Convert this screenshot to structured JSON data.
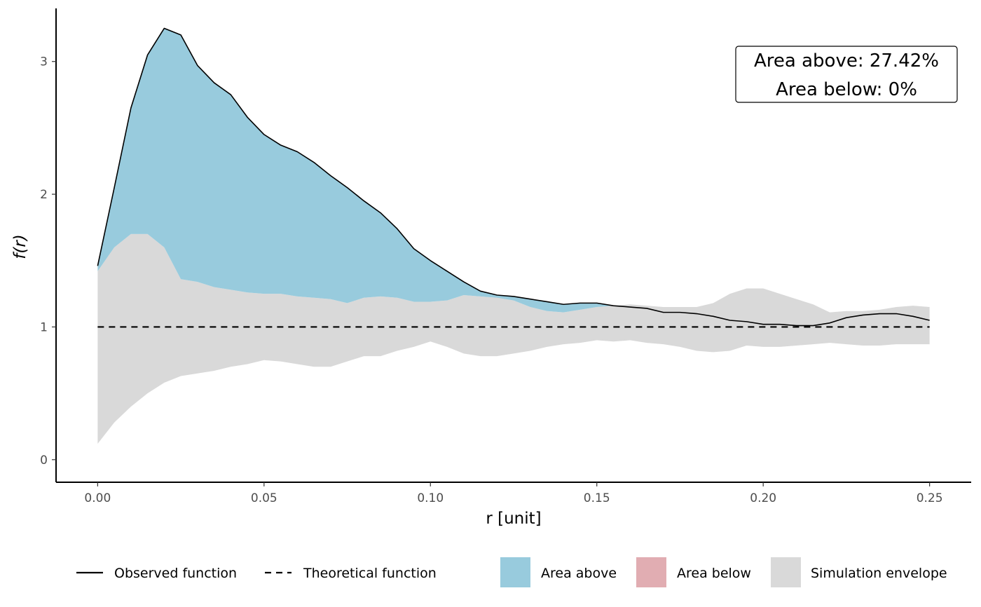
{
  "chart_data": {
    "type": "area",
    "xlabel": "r [unit]",
    "ylabel": "f(r)",
    "xlim": [
      -0.0125,
      0.2625
    ],
    "ylim": [
      -0.17,
      3.4
    ],
    "x_ticks": [
      0.0,
      0.05,
      0.1,
      0.15,
      0.2,
      0.25
    ],
    "x_tick_labels": [
      "0.00",
      "0.05",
      "0.10",
      "0.15",
      "0.20",
      "0.25"
    ],
    "y_ticks": [
      0,
      1,
      2,
      3
    ],
    "y_tick_labels": [
      "0",
      "1",
      "2",
      "3"
    ],
    "grid": false,
    "annotation": {
      "lines": [
        "Area above: 27.42%",
        "Area below: 0%"
      ],
      "placement": "top-right"
    },
    "colors": {
      "area_above": "#98cbdd",
      "area_below": "#e1adb2",
      "envelope": "#d9d9d9",
      "observed": "#000000",
      "theoretical": "#000000"
    },
    "legend": {
      "placement": "bottom",
      "line_items": [
        {
          "label": "Observed function",
          "style": "solid"
        },
        {
          "label": "Theoretical function",
          "style": "dashed"
        }
      ],
      "fill_items": [
        {
          "label": "Area above",
          "color": "#98cbdd"
        },
        {
          "label": "Area below",
          "color": "#e1adb2"
        },
        {
          "label": "Simulation envelope",
          "color": "#d9d9d9"
        }
      ]
    },
    "series": [
      {
        "name": "Observed function",
        "x": [
          0.0,
          0.005,
          0.01,
          0.015,
          0.02,
          0.025,
          0.03,
          0.035,
          0.04,
          0.045,
          0.05,
          0.055,
          0.06,
          0.065,
          0.07,
          0.075,
          0.08,
          0.085,
          0.09,
          0.095,
          0.1,
          0.105,
          0.11,
          0.115,
          0.12,
          0.125,
          0.13,
          0.135,
          0.14,
          0.145,
          0.15,
          0.155,
          0.16,
          0.165,
          0.17,
          0.175,
          0.18,
          0.185,
          0.19,
          0.195,
          0.2,
          0.205,
          0.21,
          0.215,
          0.22,
          0.225,
          0.23,
          0.235,
          0.24,
          0.245,
          0.25
        ],
        "values": [
          1.46,
          2.05,
          2.65,
          3.05,
          3.25,
          3.2,
          2.97,
          2.84,
          2.75,
          2.58,
          2.45,
          2.37,
          2.32,
          2.24,
          2.14,
          2.05,
          1.95,
          1.86,
          1.74,
          1.59,
          1.5,
          1.42,
          1.34,
          1.27,
          1.24,
          1.23,
          1.21,
          1.19,
          1.17,
          1.18,
          1.18,
          1.16,
          1.15,
          1.14,
          1.11,
          1.11,
          1.1,
          1.08,
          1.05,
          1.04,
          1.02,
          1.02,
          1.01,
          1.01,
          1.03,
          1.07,
          1.09,
          1.1,
          1.1,
          1.08,
          1.05
        ]
      },
      {
        "name": "Theoretical function",
        "x": [
          0.0,
          0.25
        ],
        "values": [
          1.0,
          1.0
        ]
      }
    ],
    "envelope": {
      "name": "Simulation envelope",
      "x": [
        0.0,
        0.005,
        0.01,
        0.015,
        0.02,
        0.025,
        0.03,
        0.035,
        0.04,
        0.045,
        0.05,
        0.055,
        0.06,
        0.065,
        0.07,
        0.075,
        0.08,
        0.085,
        0.09,
        0.095,
        0.1,
        0.105,
        0.11,
        0.115,
        0.12,
        0.125,
        0.13,
        0.135,
        0.14,
        0.145,
        0.15,
        0.155,
        0.16,
        0.165,
        0.17,
        0.175,
        0.18,
        0.185,
        0.19,
        0.195,
        0.2,
        0.205,
        0.21,
        0.215,
        0.22,
        0.225,
        0.23,
        0.235,
        0.24,
        0.245,
        0.25
      ],
      "upper": [
        1.42,
        1.6,
        1.7,
        1.7,
        1.6,
        1.36,
        1.34,
        1.3,
        1.28,
        1.26,
        1.25,
        1.25,
        1.23,
        1.22,
        1.21,
        1.18,
        1.22,
        1.23,
        1.22,
        1.19,
        1.19,
        1.2,
        1.24,
        1.23,
        1.22,
        1.2,
        1.15,
        1.12,
        1.11,
        1.13,
        1.15,
        1.16,
        1.17,
        1.16,
        1.15,
        1.15,
        1.15,
        1.18,
        1.25,
        1.29,
        1.29,
        1.25,
        1.21,
        1.17,
        1.11,
        1.12,
        1.12,
        1.13,
        1.15,
        1.16,
        1.15
      ],
      "lower": [
        0.12,
        0.28,
        0.4,
        0.5,
        0.58,
        0.63,
        0.65,
        0.67,
        0.7,
        0.72,
        0.75,
        0.74,
        0.72,
        0.7,
        0.7,
        0.74,
        0.78,
        0.78,
        0.82,
        0.85,
        0.89,
        0.85,
        0.8,
        0.78,
        0.78,
        0.8,
        0.82,
        0.85,
        0.87,
        0.88,
        0.9,
        0.89,
        0.9,
        0.88,
        0.87,
        0.85,
        0.82,
        0.81,
        0.82,
        0.86,
        0.85,
        0.85,
        0.86,
        0.87,
        0.88,
        0.87,
        0.86,
        0.86,
        0.87,
        0.87,
        0.87
      ]
    }
  }
}
